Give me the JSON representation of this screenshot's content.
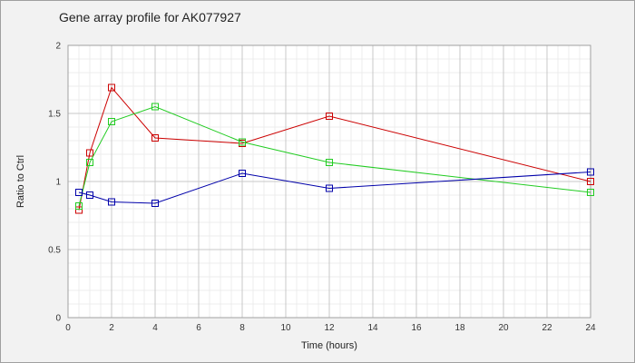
{
  "chart_data": {
    "type": "line",
    "title": "Gene array profile for AK077927",
    "xlabel": "Time (hours)",
    "ylabel": "Ratio to Ctrl",
    "xlim": [
      0,
      24
    ],
    "ylim": [
      0,
      2
    ],
    "x_ticks": [
      "0",
      "2",
      "4",
      "6",
      "8",
      "10",
      "12",
      "14",
      "16",
      "18",
      "20",
      "22",
      "24"
    ],
    "y_ticks": [
      "0",
      "0.5",
      "1",
      "1.5",
      "2"
    ],
    "grid": true,
    "x": [
      0.5,
      1,
      2,
      4,
      8,
      12,
      24
    ],
    "series": [
      {
        "color": "#cc0000",
        "values": [
          0.79,
          1.21,
          1.69,
          1.32,
          1.28,
          1.48,
          1.0
        ]
      },
      {
        "color": "#22cc22",
        "values": [
          0.82,
          1.14,
          1.44,
          1.55,
          1.29,
          1.14,
          0.92
        ]
      },
      {
        "color": "#0000aa",
        "values": [
          0.92,
          0.9,
          0.85,
          0.84,
          1.06,
          0.95,
          1.07
        ]
      }
    ]
  }
}
